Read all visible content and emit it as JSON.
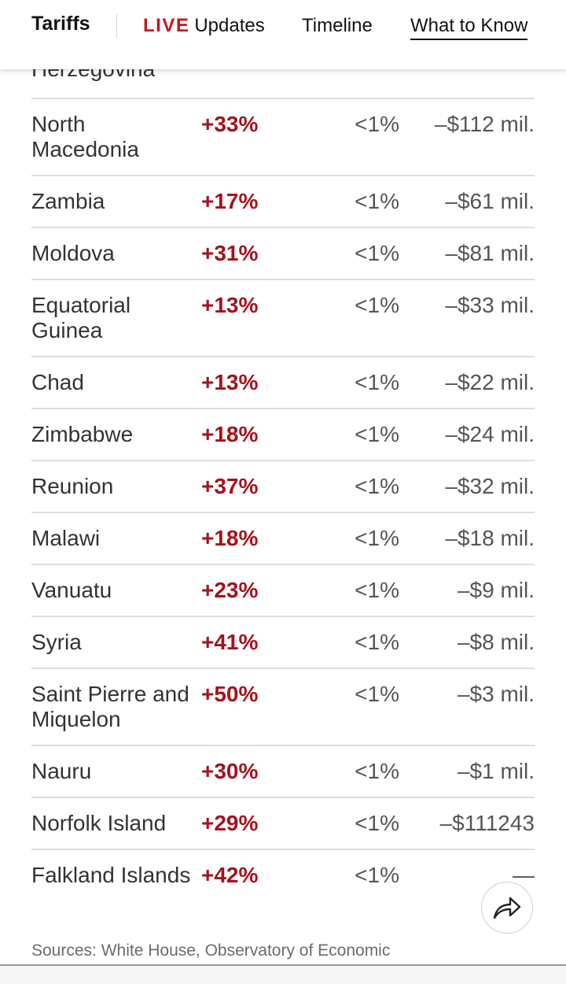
{
  "nav": {
    "brand": "Tariffs",
    "live_badge": "LIVE",
    "live_label": "Updates",
    "timeline": "Timeline",
    "what_to_know": "What to Know"
  },
  "table": {
    "partial_row_country": "Herzegovina",
    "rows": [
      {
        "country": "North Macedonia",
        "change": "+33%",
        "share": "<1%",
        "value": "–$112 mil."
      },
      {
        "country": "Zambia",
        "change": "+17%",
        "share": "<1%",
        "value": "–$61 mil."
      },
      {
        "country": "Moldova",
        "change": "+31%",
        "share": "<1%",
        "value": "–$81 mil."
      },
      {
        "country": "Equatorial Guinea",
        "change": "+13%",
        "share": "<1%",
        "value": "–$33 mil."
      },
      {
        "country": "Chad",
        "change": "+13%",
        "share": "<1%",
        "value": "–$22 mil."
      },
      {
        "country": "Zimbabwe",
        "change": "+18%",
        "share": "<1%",
        "value": "–$24 mil."
      },
      {
        "country": "Reunion",
        "change": "+37%",
        "share": "<1%",
        "value": "–$32 mil."
      },
      {
        "country": "Malawi",
        "change": "+18%",
        "share": "<1%",
        "value": "–$18 mil."
      },
      {
        "country": "Vanuatu",
        "change": "+23%",
        "share": "<1%",
        "value": "–$9 mil."
      },
      {
        "country": "Syria",
        "change": "+41%",
        "share": "<1%",
        "value": "–$8 mil."
      },
      {
        "country": "Saint Pierre and Miquelon",
        "change": "+50%",
        "share": "<1%",
        "value": "–$3 mil."
      },
      {
        "country": "Nauru",
        "change": "+30%",
        "share": "<1%",
        "value": "–$1 mil."
      },
      {
        "country": "Norfolk Island",
        "change": "+29%",
        "share": "<1%",
        "value": "–$111243"
      },
      {
        "country": "Falkland Islands",
        "change": "+42%",
        "share": "<1%",
        "value": "—"
      }
    ]
  },
  "sources": "Sources: White House, Observatory of Economic",
  "icons": {
    "share": "share-arrow-icon"
  },
  "colors": {
    "live_red": "#c5151b",
    "change_red": "#a5121b",
    "divider": "#dcdcdc"
  }
}
